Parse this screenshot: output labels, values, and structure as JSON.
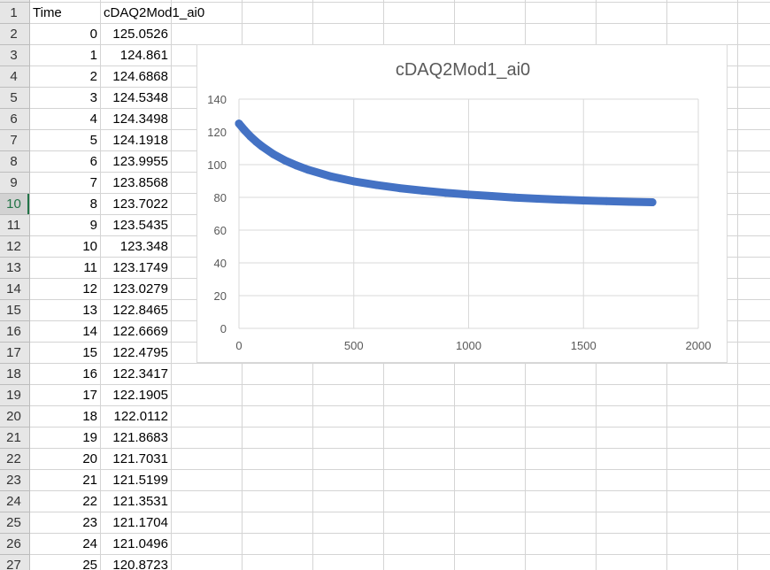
{
  "sheet": {
    "headers": {
      "time": "Time",
      "signal": "cDAQ2Mod1_ai0"
    },
    "row_numbers": [
      "1",
      "2",
      "3",
      "4",
      "5",
      "6",
      "7",
      "8",
      "9",
      "10",
      "11",
      "12",
      "13",
      "14",
      "15",
      "16",
      "17",
      "18",
      "19",
      "20",
      "21",
      "22",
      "23",
      "24",
      "25",
      "26",
      "27"
    ],
    "active_row": "10",
    "rows": [
      {
        "time": "0",
        "value": "125.0526"
      },
      {
        "time": "1",
        "value": "124.861"
      },
      {
        "time": "2",
        "value": "124.6868"
      },
      {
        "time": "3",
        "value": "124.5348"
      },
      {
        "time": "4",
        "value": "124.3498"
      },
      {
        "time": "5",
        "value": "124.1918"
      },
      {
        "time": "6",
        "value": "123.9955"
      },
      {
        "time": "7",
        "value": "123.8568"
      },
      {
        "time": "8",
        "value": "123.7022"
      },
      {
        "time": "9",
        "value": "123.5435"
      },
      {
        "time": "10",
        "value": "123.348"
      },
      {
        "time": "11",
        "value": "123.1749"
      },
      {
        "time": "12",
        "value": "123.0279"
      },
      {
        "time": "13",
        "value": "122.8465"
      },
      {
        "time": "14",
        "value": "122.6669"
      },
      {
        "time": "15",
        "value": "122.4795"
      },
      {
        "time": "16",
        "value": "122.3417"
      },
      {
        "time": "17",
        "value": "122.1905"
      },
      {
        "time": "18",
        "value": "122.0112"
      },
      {
        "time": "19",
        "value": "121.8683"
      },
      {
        "time": "20",
        "value": "121.7031"
      },
      {
        "time": "21",
        "value": "121.5199"
      },
      {
        "time": "22",
        "value": "121.3531"
      },
      {
        "time": "23",
        "value": "121.1704"
      },
      {
        "time": "24",
        "value": "121.0496"
      },
      {
        "time": "25",
        "value": "120.8723"
      }
    ]
  },
  "chart_data": {
    "type": "scatter",
    "title": "cDAQ2Mod1_ai0",
    "xlabel": "",
    "ylabel": "",
    "xlim": [
      0,
      2000
    ],
    "ylim": [
      0,
      140
    ],
    "x_ticks": [
      "0",
      "500",
      "1000",
      "1500",
      "2000"
    ],
    "y_ticks": [
      "0",
      "20",
      "40",
      "60",
      "80",
      "100",
      "120",
      "140"
    ],
    "grid": true,
    "legend": "none",
    "series_color": "#4472c4",
    "series": [
      {
        "x": [
          0,
          25,
          50,
          75,
          100,
          150,
          200,
          250,
          300,
          400,
          500,
          600,
          700,
          800,
          900,
          1000,
          1100,
          1200,
          1300,
          1400,
          1500,
          1600,
          1700,
          1800
        ],
        "y": [
          125.1,
          120.9,
          117.2,
          114.0,
          111.2,
          106.4,
          102.6,
          99.5,
          96.9,
          92.8,
          89.8,
          87.5,
          85.6,
          84.1,
          82.8,
          81.7,
          80.8,
          79.9,
          79.2,
          78.6,
          78.1,
          77.7,
          77.3,
          77.0
        ]
      }
    ]
  },
  "colors": {
    "active_row": "#217346",
    "gridline": "#d4d4d4",
    "header_bg": "#e6e6e6"
  }
}
